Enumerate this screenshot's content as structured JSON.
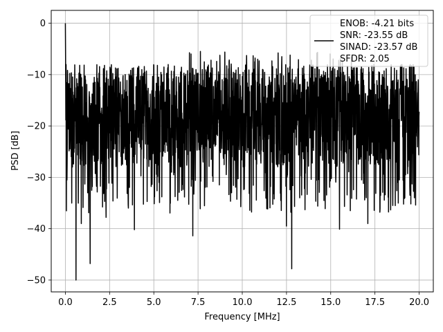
{
  "chart_data": {
    "type": "line",
    "title": "",
    "xlabel": "Frequency [MHz]",
    "ylabel": "PSD [dB]",
    "xlim": [
      -0.8,
      20.8
    ],
    "ylim": [
      -52.3,
      2.5
    ],
    "x_ticks": [
      0.0,
      2.5,
      5.0,
      7.5,
      10.0,
      12.5,
      15.0,
      17.5,
      20.0
    ],
    "x_tick_labels": [
      "0.0",
      "2.5",
      "5.0",
      "7.5",
      "10.0",
      "12.5",
      "15.0",
      "17.5",
      "20.0"
    ],
    "y_ticks": [
      0,
      -10,
      -20,
      -30,
      -40,
      -50
    ],
    "y_tick_labels": [
      "0",
      "−10",
      "−20",
      "−30",
      "−40",
      "−50"
    ],
    "grid": true,
    "legend_position": "top-right",
    "legend_lines": [
      "ENOB: -4.21 bits",
      "SNR: -23.55 dB",
      "SINAD: -23.57 dB",
      "SFDR: 2.05"
    ],
    "series": [
      {
        "color": "#000000",
        "x_range": [
          0.0,
          20.0
        ],
        "points": 2000,
        "peak": {
          "x": 0.0,
          "y": 0.0
        },
        "typical_max": -10,
        "typical_mean": -20,
        "typical_min": -30,
        "notable_minima": [
          {
            "x": 0.6,
            "y": -50.0
          },
          {
            "x": 1.4,
            "y": -46.8
          },
          {
            "x": 12.8,
            "y": -47.8
          },
          {
            "x": 7.2,
            "y": -41.4
          },
          {
            "x": 12.5,
            "y": -39.5
          },
          {
            "x": 3.9,
            "y": -40.2
          },
          {
            "x": 0.9,
            "y": -39.0
          },
          {
            "x": 2.3,
            "y": -37.8
          },
          {
            "x": 17.1,
            "y": -39.0
          },
          {
            "x": 15.5,
            "y": -40.1
          }
        ]
      }
    ]
  }
}
